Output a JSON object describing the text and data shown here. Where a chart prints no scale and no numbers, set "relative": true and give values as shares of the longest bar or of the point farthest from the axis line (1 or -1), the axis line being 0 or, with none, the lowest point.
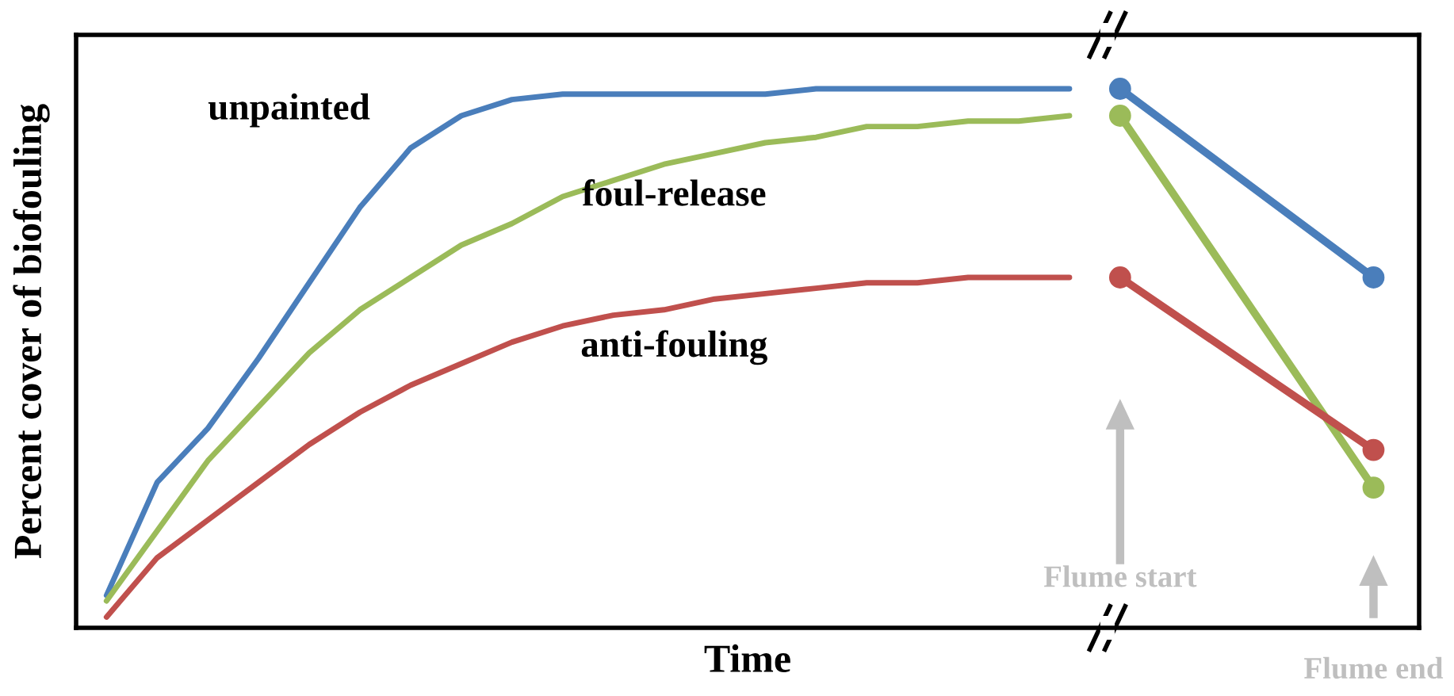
{
  "chart_data": {
    "type": "line",
    "relative": true,
    "xlabel": "Time",
    "ylabel": "Percent cover of biofouling",
    "legend": false,
    "grid": false,
    "marker": "none",
    "line_style": "solid",
    "categories": [
      null,
      null,
      null,
      null,
      null,
      null,
      null,
      null,
      null,
      null,
      null,
      null,
      null,
      null,
      null,
      null,
      null,
      null,
      null,
      null,
      null,
      null,
      null,
      null,
      null,
      null
    ],
    "series": [
      {
        "name": "unpainted",
        "color": "#4a7ebb",
        "values": [
          0.06,
          0.27,
          0.37,
          0.5,
          0.64,
          0.78,
          0.89,
          0.95,
          0.98,
          0.99,
          0.99,
          0.99,
          0.99,
          0.99,
          1.0,
          1.0,
          1.0,
          1.0,
          1.0,
          1.0,
          null,
          null,
          null,
          null,
          null,
          null
        ]
      },
      {
        "name": "foul-release",
        "color": "#9bbb59",
        "values": [
          0.05,
          0.18,
          0.31,
          0.41,
          0.51,
          0.59,
          0.65,
          0.71,
          0.75,
          0.8,
          0.83,
          0.86,
          0.88,
          0.9,
          0.91,
          0.93,
          0.93,
          0.94,
          0.94,
          0.95,
          null,
          null,
          null,
          null,
          null,
          null
        ]
      },
      {
        "name": "anti-fouling",
        "color": "#c0504d",
        "values": [
          0.02,
          0.13,
          0.2,
          0.27,
          0.34,
          0.4,
          0.45,
          0.49,
          0.53,
          0.56,
          0.58,
          0.59,
          0.61,
          0.62,
          0.63,
          0.64,
          0.64,
          0.65,
          0.65,
          0.65,
          null,
          null,
          null,
          null,
          null,
          null
        ]
      },
      {
        "color": "#4a7ebb",
        "marker": "circle",
        "values": [
          null,
          null,
          null,
          null,
          null,
          null,
          null,
          null,
          null,
          null,
          null,
          null,
          null,
          null,
          null,
          null,
          null,
          null,
          null,
          null,
          1.0,
          null,
          null,
          null,
          null,
          0.65
        ]
      },
      {
        "color": "#9bbb59",
        "marker": "circle",
        "values": [
          null,
          null,
          null,
          null,
          null,
          null,
          null,
          null,
          null,
          null,
          null,
          null,
          null,
          null,
          null,
          null,
          null,
          null,
          null,
          null,
          0.95,
          null,
          null,
          null,
          null,
          0.26
        ]
      },
      {
        "color": "#c0504d",
        "marker": "circle",
        "values": [
          null,
          null,
          null,
          null,
          null,
          null,
          null,
          null,
          null,
          null,
          null,
          null,
          null,
          null,
          null,
          null,
          null,
          null,
          null,
          null,
          0.65,
          null,
          null,
          null,
          null,
          0.33
        ]
      }
    ],
    "annotations": [
      "Flume start",
      "Flume end"
    ]
  }
}
